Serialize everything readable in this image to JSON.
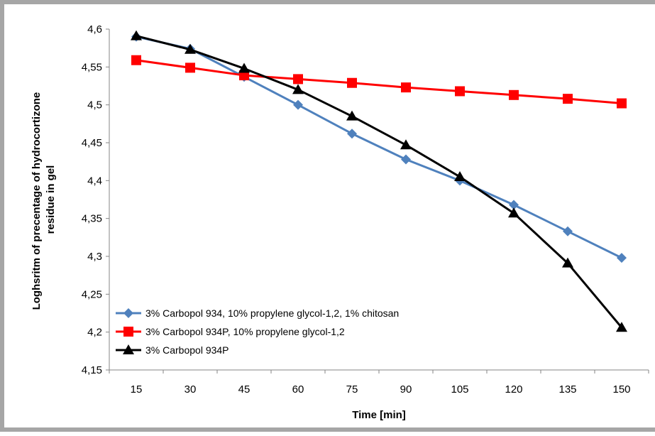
{
  "chart_data": {
    "type": "line",
    "title": "",
    "xlabel": "Time [min]",
    "ylabel_lines": [
      "Loghsritm of precentage of hydrocortizone",
      "residue in gel"
    ],
    "categories": [
      "15",
      "30",
      "45",
      "60",
      "75",
      "90",
      "105",
      "120",
      "135",
      "150"
    ],
    "ylim": [
      4.15,
      4.6
    ],
    "yticks": [
      "4,15",
      "4,2",
      "4,25",
      "4,3",
      "4,35",
      "4,4",
      "4,45",
      "4,5",
      "4,55",
      "4,6"
    ],
    "grid": false,
    "legend_position": "bottom-left",
    "series": [
      {
        "name": "3% Carbopol 934, 10% propylene glycol-1,2, 1% chitosan",
        "color": "#4f81bd",
        "marker": "diamond",
        "values": [
          4.59,
          4.574,
          4.537,
          4.5,
          4.462,
          4.428,
          4.4,
          4.368,
          4.333,
          4.298
        ]
      },
      {
        "name": "3% Carbopol 934P, 10% propylene glycol-1,2",
        "color": "#ff0000",
        "marker": "square",
        "values": [
          4.559,
          4.549,
          4.539,
          4.534,
          4.529,
          4.523,
          4.518,
          4.513,
          4.508,
          4.502
        ]
      },
      {
        "name": "3% Carbopol 934P",
        "color": "#000000",
        "marker": "triangle",
        "values": [
          4.591,
          4.573,
          4.548,
          4.52,
          4.485,
          4.447,
          4.405,
          4.357,
          4.291,
          4.206
        ]
      }
    ]
  }
}
